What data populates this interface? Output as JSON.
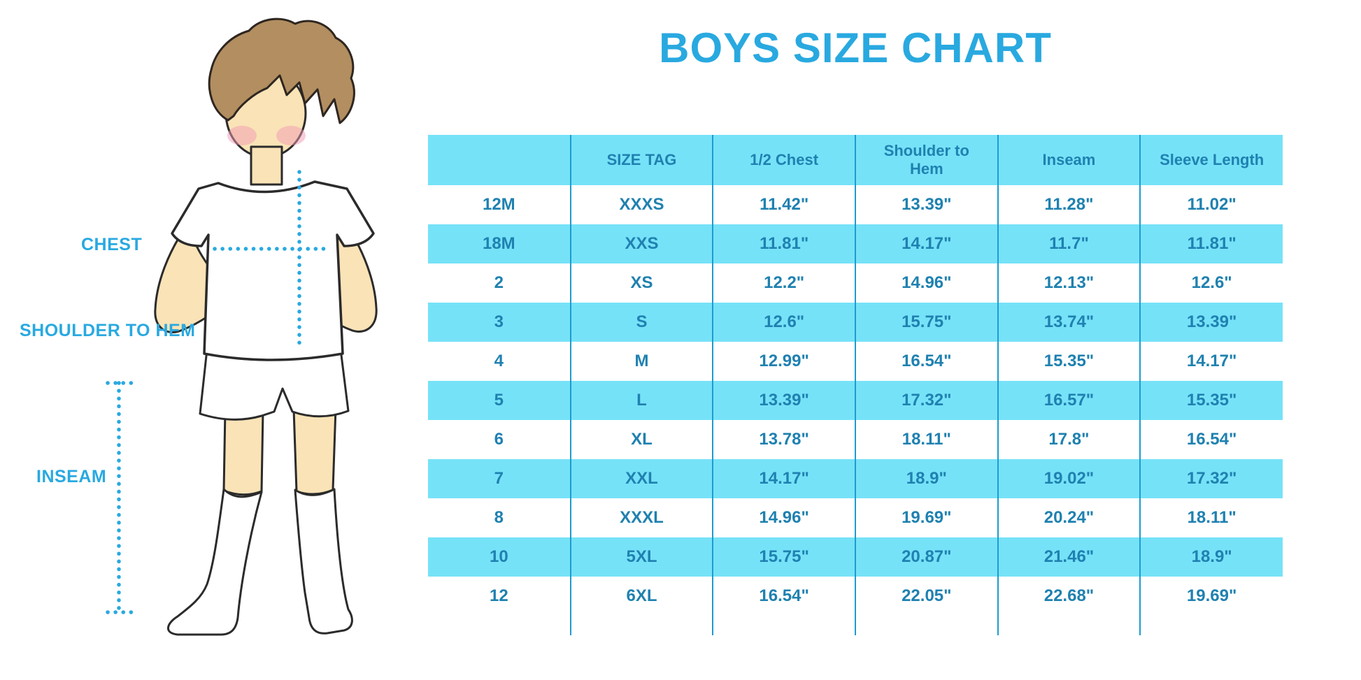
{
  "title": "BOYS SIZE CHART",
  "figure": {
    "description": "boy-illustration",
    "labels": {
      "chest": "CHEST",
      "shoulder_to_hem": "SHOULDER TO HEM",
      "inseam": "INSEAM"
    }
  },
  "chart_data": {
    "type": "table",
    "title": "BOYS SIZE CHART",
    "columns": [
      "",
      "SIZE TAG",
      "1/2 Chest",
      "Shoulder to\nHem",
      "Inseam",
      "Sleeve Length"
    ],
    "rows": [
      [
        "12M",
        "XXXS",
        "11.42\"",
        "13.39\"",
        "11.28\"",
        "11.02\""
      ],
      [
        "18M",
        "XXS",
        "11.81\"",
        "14.17\"",
        "11.7\"",
        "11.81\""
      ],
      [
        "2",
        "XS",
        "12.2\"",
        "14.96\"",
        "12.13\"",
        "12.6\""
      ],
      [
        "3",
        "S",
        "12.6\"",
        "15.75\"",
        "13.74\"",
        "13.39\""
      ],
      [
        "4",
        "M",
        "12.99\"",
        "16.54\"",
        "15.35\"",
        "14.17\""
      ],
      [
        "5",
        "L",
        "13.39\"",
        "17.32\"",
        "16.57\"",
        "15.35\""
      ],
      [
        "6",
        "XL",
        "13.78\"",
        "18.11\"",
        "17.8\"",
        "16.54\""
      ],
      [
        "7",
        "XXL",
        "14.17\"",
        "18.9\"",
        "19.02\"",
        "17.32\""
      ],
      [
        "8",
        "XXXL",
        "14.96\"",
        "19.69\"",
        "20.24\"",
        "18.11\""
      ],
      [
        "10",
        "5XL",
        "15.75\"",
        "20.87\"",
        "21.46\"",
        "18.9\""
      ],
      [
        "12",
        "6XL",
        "16.54\"",
        "22.05\"",
        "22.68\"",
        "19.69\""
      ]
    ],
    "layout": {
      "striped_rows": "alternating (18M, 3, 5, 7, 10 highlighted)",
      "grid": "internal vertical separators only, no outer border"
    }
  },
  "colors": {
    "accent_blue": "#29A9E0",
    "table_text": "#1F81B0",
    "row_stripe": "#76E2F8",
    "column_separator": "#1E9CD0",
    "skin": "#FAE3B7",
    "hair": "#B28E60",
    "blush": "#F09CB4"
  }
}
